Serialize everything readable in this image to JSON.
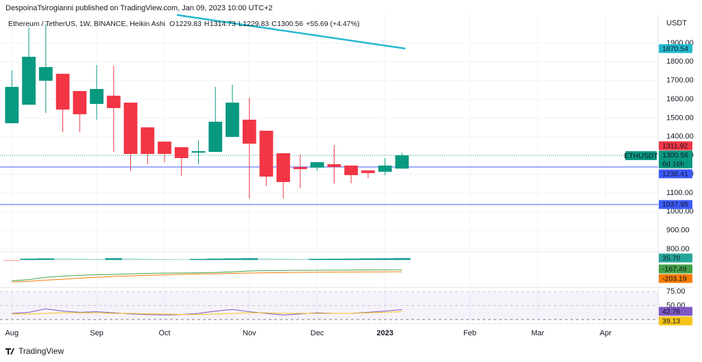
{
  "header": {
    "publisher": "DespoinaTsirogianni published on TradingView.com, Jan 09, 2023 10:00 UTC+2"
  },
  "footer": {
    "brand": "TradingView"
  },
  "chart_data": {
    "type": "candlestick",
    "symbol_description": "Ethereum / TetherUS, 1W, BINANCE, Heikin Ashi",
    "ohlc_letters": [
      "O",
      "H",
      "L",
      "C"
    ],
    "change": "+55.69 (+4.47%)",
    "currency": "USDT",
    "open": [
      1472,
      1571,
      1699,
      1736,
      1644,
      1575,
      1619,
      1582,
      1450,
      1374,
      1344,
      1315,
      1319,
      1399,
      1491,
      1432,
      1312,
      1238,
      1235,
      1253,
      1246,
      1220,
      1213,
      1229.83
    ],
    "high": [
      1754,
      1984,
      2002,
      1736,
      1644,
      1783,
      1779,
      1582,
      1450,
      1374,
      1344,
      1381,
      1666,
      1677,
      1608,
      1432,
      1312,
      1304,
      1264,
      1355,
      1246,
      1220,
      1286,
      1314.73
    ],
    "low": [
      1472,
      1571,
      1527,
      1425,
      1425,
      1491,
      1319,
      1217,
      1253,
      1264,
      1191,
      1253,
      1319,
      1399,
      1070,
      1136,
      1070,
      1125,
      1217,
      1151,
      1151,
      1180,
      1195,
      1229.83
    ],
    "close": [
      1666,
      1827,
      1772,
      1545,
      1520,
      1655,
      1553,
      1308,
      1308,
      1308,
      1286,
      1323,
      1480,
      1582,
      1363,
      1187,
      1158,
      1227,
      1264,
      1238,
      1195,
      1206,
      1246,
      1300.56
    ],
    "up_color": "#089981",
    "down_color": "#f23645",
    "xlim": [
      -0.7,
      38.1
    ],
    "xticks": [
      {
        "value": 0,
        "label": "Aug"
      },
      {
        "value": 5,
        "label": "Sep"
      },
      {
        "value": 9,
        "label": "Oct"
      },
      {
        "value": 14,
        "label": "Nov"
      },
      {
        "value": 18,
        "label": "Dec"
      },
      {
        "value": 22,
        "label": "2023"
      },
      {
        "value": 27,
        "label": "Feb"
      },
      {
        "value": 31,
        "label": "Mar"
      },
      {
        "value": 35,
        "label": "Apr"
      }
    ],
    "ylim": [
      789,
      2057
    ],
    "yticks": [
      {
        "value": 800,
        "label": "800.00"
      },
      {
        "value": 900,
        "label": "900.00"
      },
      {
        "value": 1000,
        "label": "1000.00"
      },
      {
        "value": 1100,
        "label": "1100.00"
      },
      {
        "value": 1200,
        "label": "1200.00"
      },
      {
        "value": 1300,
        "label": "1300.00"
      },
      {
        "value": 1400,
        "label": "1400.00"
      },
      {
        "value": 1500,
        "label": "1500.00"
      },
      {
        "value": 1600,
        "label": "1600.00"
      },
      {
        "value": 1700,
        "label": "1700.00"
      },
      {
        "value": 1800,
        "label": "1800.00"
      },
      {
        "value": 1900,
        "label": "1900.00"
      }
    ],
    "grid": true,
    "trendline": {
      "x": [
        9.73,
        23.2
      ],
      "y": [
        2050,
        1870.54
      ],
      "color": "#22b8cf"
    },
    "hlines": [
      {
        "value": 1238.41,
        "color": "#3d5afe"
      },
      {
        "value": 1037.95,
        "color": "#3d5afe"
      }
    ],
    "high_tag": 1311.92,
    "last_price": {
      "value": 1300.56,
      "countdown": "6d 16h",
      "symbol": "ETHUSDT"
    },
    "macd": {
      "ylim": [
        -452,
        119
      ],
      "histogram": {
        "values": [
          -15,
          25,
          30,
          28,
          24,
          20,
          35,
          28,
          22,
          18,
          16,
          20,
          26,
          30,
          34,
          28,
          24,
          20,
          22,
          24,
          26,
          30,
          32,
          35.7
        ],
        "value_labels": [
          null,
          null,
          null,
          null,
          null,
          null,
          null,
          null,
          null,
          null,
          null,
          null,
          null,
          null,
          null,
          null,
          null,
          null,
          null,
          null,
          null,
          null,
          null,
          "35.70"
        ],
        "rising_color": "#26a69a",
        "falling_color": "#b2dfdb",
        "negative_color": "#f7a9a7"
      },
      "series": [
        {
          "color": "#43a047",
          "values": [
            -360,
            -340,
            -300,
            -280,
            -265,
            -255,
            -250,
            -240,
            -232,
            -228,
            -225,
            -222,
            -215,
            -205,
            -190,
            -185,
            -182,
            -180,
            -178,
            -176,
            -174,
            -172,
            -170,
            -167.49
          ]
        },
        {
          "color": "#f57c00",
          "values": [
            -380,
            -370,
            -350,
            -335,
            -315,
            -300,
            -286,
            -275,
            -265,
            -258,
            -250,
            -243,
            -238,
            -232,
            -226,
            -222,
            -218,
            -215,
            -212,
            -210,
            -208,
            -206,
            -205,
            -203.19
          ]
        }
      ]
    },
    "rsi": {
      "ylim": [
        21.3,
        79.9
      ],
      "yticks": [
        {
          "value": 75,
          "label": "75.00"
        },
        {
          "value": 50,
          "label": "50.00"
        }
      ],
      "bands": [
        25,
        75
      ],
      "series": [
        {
          "color": "#7e57c2",
          "values": [
            36,
            38,
            44,
            40,
            38,
            39,
            37,
            35,
            34,
            33,
            34,
            36,
            40,
            43,
            39,
            36,
            33,
            35,
            37,
            36,
            36,
            38,
            40,
            42.76
          ]
        },
        {
          "color": "#f5c518",
          "values": [
            35,
            35,
            36,
            37,
            37,
            37,
            36,
            36,
            35,
            35,
            34,
            34,
            35,
            36,
            37,
            37,
            36,
            36,
            36,
            36,
            36,
            37,
            38,
            39.13
          ]
        }
      ]
    }
  }
}
